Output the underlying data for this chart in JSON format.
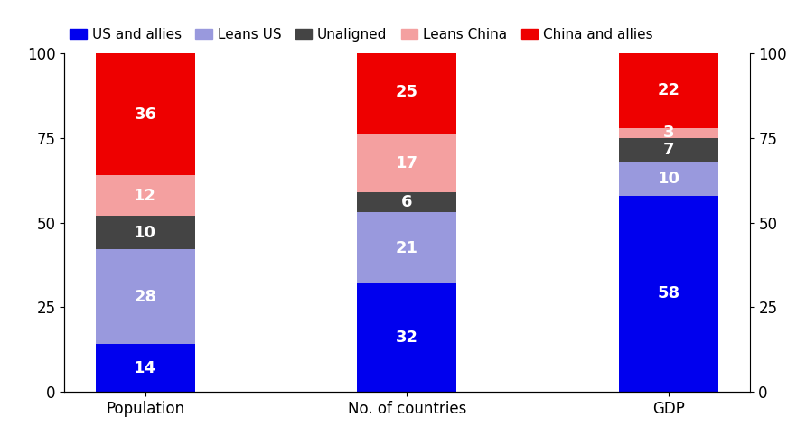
{
  "categories": [
    "Population",
    "No. of countries",
    "GDP"
  ],
  "series": [
    {
      "label": "US and allies",
      "color": "#0000ee",
      "values": [
        14,
        32,
        58
      ]
    },
    {
      "label": "Leans US",
      "color": "#9999dd",
      "values": [
        28,
        21,
        10
      ]
    },
    {
      "label": "Unaligned",
      "color": "#444444",
      "values": [
        10,
        6,
        7
      ]
    },
    {
      "label": "Leans China",
      "color": "#f4a0a0",
      "values": [
        12,
        17,
        3
      ]
    },
    {
      "label": "China and allies",
      "color": "#ee0000",
      "values": [
        36,
        25,
        22
      ]
    }
  ],
  "ylim": [
    0,
    100
  ],
  "yticks": [
    0,
    25,
    50,
    75,
    100
  ],
  "label_color": "white",
  "label_fontsize": 13,
  "legend_fontsize": 11,
  "tick_fontsize": 12,
  "bar_width": 0.38,
  "figsize": [
    8.92,
    4.93
  ],
  "dpi": 100,
  "bg_color": "#ffffff"
}
